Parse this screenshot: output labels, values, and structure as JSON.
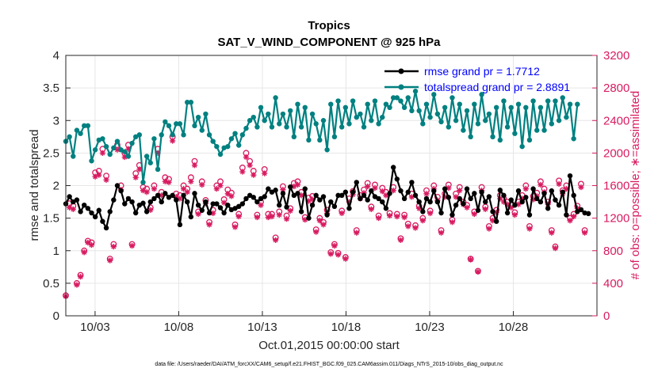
{
  "chart_data": {
    "type": "line",
    "title": "Tropics",
    "subtitle": "SAT_V_WIND_COMPONENT @ 925 hPa",
    "xlabel": "Oct.01,2015 00:00:00 start",
    "ylabel": "rmse and totalspread",
    "y2label": "# of obs: o=possible; ∗=assimilated",
    "footnote": "data file: /Users/raeder/DAI/ATM_forcXX/CAM6_setup/f.e21.FHIST_BGC.f09_025.CAM6assim.011/Diags_NTrS_2015-10/obs_diag_output.nc",
    "xlim": [
      1.25,
      33.0
    ],
    "ylim": [
      0,
      4
    ],
    "y2lim": [
      0,
      3200
    ],
    "xticks": [
      3,
      8,
      13,
      18,
      23,
      28
    ],
    "xtick_labels": [
      "10/03",
      "10/08",
      "10/13",
      "10/18",
      "10/23",
      "10/28"
    ],
    "yticks": [
      0,
      0.5,
      1,
      1.5,
      2,
      2.5,
      3,
      3.5,
      4
    ],
    "ytick_labels": [
      "0",
      "0.5",
      "1",
      "1.5",
      "2",
      "2.5",
      "3",
      "3.5",
      "4"
    ],
    "y2ticks": [
      0,
      400,
      800,
      1200,
      1600,
      2000,
      2400,
      2800,
      3200
    ],
    "y2tick_labels": [
      "0",
      "400",
      "800",
      "1200",
      "1600",
      "2000",
      "2400",
      "2800",
      "3200"
    ],
    "grid": true,
    "legend_position": "top-right",
    "series": [
      {
        "name": "rmse grand pr = 1.7712",
        "color": "#000000",
        "marker": "filled-circle",
        "values": [
          1.72,
          1.83,
          1.75,
          1.78,
          1.6,
          1.7,
          1.65,
          1.58,
          1.52,
          1.62,
          1.45,
          1.35,
          1.6,
          1.78,
          2.0,
          1.92,
          1.72,
          1.8,
          1.75,
          1.58,
          1.7,
          1.73,
          1.6,
          1.75,
          1.8,
          1.85,
          1.75,
          1.88,
          1.82,
          1.85,
          1.78,
          1.4,
          1.85,
          1.75,
          1.52,
          1.88,
          1.7,
          1.62,
          1.75,
          1.58,
          1.72,
          1.72,
          1.66,
          1.58,
          1.7,
          1.63,
          1.65,
          1.68,
          1.72,
          1.8,
          1.85,
          1.82,
          1.75,
          1.8,
          1.83,
          1.95,
          1.9,
          1.93,
          1.7,
          1.88,
          1.67,
          1.98,
          1.85,
          1.88,
          1.6,
          1.95,
          1.5,
          1.7,
          1.85,
          1.78,
          1.83,
          1.55,
          1.75,
          1.68,
          1.85,
          1.85,
          1.9,
          1.65,
          1.9,
          2.05,
          1.8,
          1.85,
          1.78,
          1.92,
          1.83,
          1.8,
          1.75,
          1.65,
          1.88,
          2.28,
          2.1,
          1.92,
          1.8,
          1.9,
          2.05,
          1.85,
          1.75,
          1.6,
          1.8,
          1.75,
          1.92,
          1.75,
          1.58,
          1.95,
          1.82,
          1.55,
          1.7,
          1.8,
          1.72,
          1.95,
          1.8,
          1.88,
          1.62,
          1.9,
          1.75,
          1.83,
          1.6,
          1.45,
          1.93,
          1.85,
          1.58,
          1.78,
          1.7,
          1.92,
          1.75,
          1.82,
          1.55,
          1.95,
          1.8,
          1.75,
          1.88,
          1.65,
          1.92,
          1.78,
          1.7,
          1.9,
          1.55,
          2.15,
          1.85,
          1.6,
          1.63,
          1.58,
          1.57
        ]
      },
      {
        "name": "totalspread grand pr = 2.8891",
        "color": "#008080",
        "marker": "filled-circle",
        "values": [
          2.68,
          2.75,
          2.45,
          2.85,
          2.8,
          2.92,
          2.92,
          2.38,
          2.55,
          2.7,
          2.72,
          2.6,
          2.48,
          2.58,
          2.68,
          2.55,
          2.52,
          2.45,
          2.65,
          2.75,
          2.78,
          2.05,
          2.45,
          2.35,
          2.72,
          2.25,
          2.78,
          2.98,
          2.92,
          2.78,
          2.95,
          2.95,
          2.78,
          3.28,
          3.28,
          2.92,
          3.05,
          2.85,
          3.1,
          2.78,
          2.68,
          2.6,
          2.48,
          2.58,
          2.6,
          2.72,
          2.8,
          2.62,
          2.78,
          2.88,
          3.0,
          3.05,
          2.9,
          3.2,
          3.0,
          3.1,
          2.9,
          3.35,
          2.95,
          3.1,
          2.9,
          3.15,
          2.75,
          3.25,
          2.9,
          3.2,
          2.7,
          3.1,
          2.95,
          2.7,
          3.0,
          2.55,
          3.25,
          2.75,
          3.3,
          2.9,
          3.2,
          2.95,
          3.3,
          3.05,
          3.1,
          2.9,
          3.25,
          3.0,
          3.3,
          2.95,
          3.05,
          3.25,
          3.2,
          3.35,
          3.35,
          3.3,
          3.2,
          3.35,
          3.15,
          3.45,
          3.15,
          2.95,
          3.25,
          3.05,
          3.4,
          3.1,
          2.98,
          3.2,
          2.9,
          3.35,
          3.0,
          3.25,
          2.85,
          3.15,
          2.75,
          3.25,
          2.95,
          3.4,
          3.0,
          3.1,
          2.75,
          3.2,
          2.7,
          3.3,
          2.9,
          3.2,
          2.8,
          3.25,
          2.6,
          3.2,
          2.7,
          3.3,
          2.85,
          3.2,
          2.85,
          3.3,
          2.95,
          3.3,
          3.0,
          3.35,
          3.05,
          3.25,
          2.72,
          3.25
        ]
      }
    ],
    "obs_possible": {
      "name": "# of obs possible",
      "color": "#d81b60",
      "marker": "open-circle",
      "axis": "right",
      "values": [
        250,
        1380,
        1350,
        400,
        500,
        800,
        920,
        900,
        1760,
        1780,
        2050,
        1720,
        700,
        880,
        2100,
        1600,
        2000,
        2100,
        880,
        1750,
        1850,
        1580,
        1560,
        1330,
        1600,
        2050,
        1520,
        1700,
        1680,
        2200,
        1500,
        1480,
        1600,
        1560,
        1700,
        1900,
        1280,
        1650,
        1420,
        1150,
        1300,
        1600,
        1650,
        1430,
        1550,
        1510,
        1120,
        1250,
        1820,
        2000,
        1900,
        1780,
        1240,
        1400,
        1800,
        1250,
        1250,
        960,
        1280,
        1590,
        1230,
        1320,
        1630,
        1650,
        1520,
        1210,
        1450,
        1470,
        1060,
        1200,
        1150,
        1300,
        780,
        880,
        770,
        1290,
        720,
        1440,
        1530,
        1050,
        1480,
        1550,
        1630,
        1340,
        1610,
        1230,
        1570,
        1520,
        1260,
        1580,
        1250,
        950,
        1240,
        1130,
        1500,
        1110,
        1350,
        1200,
        1540,
        1290,
        1600,
        1460,
        1050,
        1500,
        1610,
        1180,
        1500,
        1580,
        1400,
        1360,
        700,
        1280,
        550,
        1580,
        1340,
        1100,
        1200,
        1300,
        1480,
        1440,
        1400,
        1360,
        1270,
        1400,
        1480,
        1600,
        1100,
        1470,
        1510,
        1650,
        1560,
        1400,
        1050,
        850,
        1660,
        1540,
        1600,
        1200,
        1250,
        1350,
        1620,
        1050
      ]
    },
    "obs_assimilated": {
      "name": "# of obs assimilated",
      "color": "#d81b60",
      "marker": "asterisk",
      "axis": "right",
      "values": [
        240,
        1330,
        1310,
        380,
        480,
        780,
        900,
        870,
        1710,
        1730,
        2000,
        1670,
        680,
        850,
        2040,
        1550,
        1950,
        2050,
        860,
        1700,
        1800,
        1540,
        1520,
        1300,
        1560,
        2000,
        1480,
        1650,
        1640,
        2150,
        1460,
        1440,
        1560,
        1520,
        1650,
        1850,
        1250,
        1610,
        1380,
        1120,
        1260,
        1560,
        1600,
        1390,
        1500,
        1470,
        1090,
        1220,
        1770,
        1950,
        1850,
        1730,
        1210,
        1360,
        1750,
        1210,
        1220,
        930,
        1240,
        1550,
        1190,
        1290,
        1590,
        1610,
        1480,
        1180,
        1410,
        1430,
        1030,
        1170,
        1120,
        1260,
        760,
        860,
        750,
        1260,
        700,
        1400,
        1490,
        1020,
        1440,
        1510,
        1590,
        1310,
        1570,
        1200,
        1530,
        1480,
        1230,
        1540,
        1220,
        930,
        1210,
        1100,
        1460,
        1080,
        1320,
        1170,
        1500,
        1260,
        1560,
        1420,
        1020,
        1460,
        1570,
        1150,
        1460,
        1540,
        1370,
        1330,
        690,
        1250,
        540,
        1540,
        1310,
        1070,
        1170,
        1270,
        1440,
        1400,
        1370,
        1330,
        1240,
        1370,
        1440,
        1560,
        1070,
        1430,
        1470,
        1610,
        1520,
        1370,
        1020,
        830,
        1620,
        1500,
        1560,
        1170,
        1220,
        1320,
        1580,
        1020
      ]
    }
  }
}
